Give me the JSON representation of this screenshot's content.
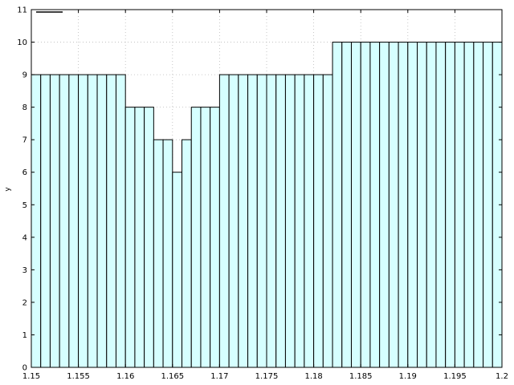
{
  "chart_data": {
    "type": "bar",
    "title": "",
    "xlabel": "",
    "ylabel": "y",
    "xlim": [
      1.15,
      1.2
    ],
    "ylim": [
      0,
      11
    ],
    "x_ticks": [
      "1.15",
      "1.155",
      "1.16",
      "1.165",
      "1.17",
      "1.175",
      "1.18",
      "1.185",
      "1.19",
      "1.195",
      "1.2"
    ],
    "y_ticks": [
      "0",
      "1",
      "2",
      "3",
      "4",
      "5",
      "6",
      "7",
      "8",
      "9",
      "10",
      "11"
    ],
    "grid": true,
    "legend": {
      "placement": "top-left",
      "entries": [
        {
          "name": "",
          "style": "line",
          "color": "#000000"
        }
      ]
    },
    "bar_fill": "#d6ffff",
    "bar_edge": "#000000",
    "bin_width": 0.001,
    "bin_start": 1.15,
    "values": [
      9,
      9,
      9,
      9,
      9,
      9,
      9,
      9,
      9,
      9,
      8,
      8,
      8,
      7,
      7,
      6,
      7,
      8,
      8,
      8,
      9,
      9,
      9,
      9,
      9,
      9,
      9,
      9,
      9,
      9,
      9,
      9,
      10,
      10,
      10,
      10,
      10,
      10,
      10,
      10,
      10,
      10,
      10,
      10,
      10,
      10,
      10,
      10,
      10,
      10
    ]
  }
}
